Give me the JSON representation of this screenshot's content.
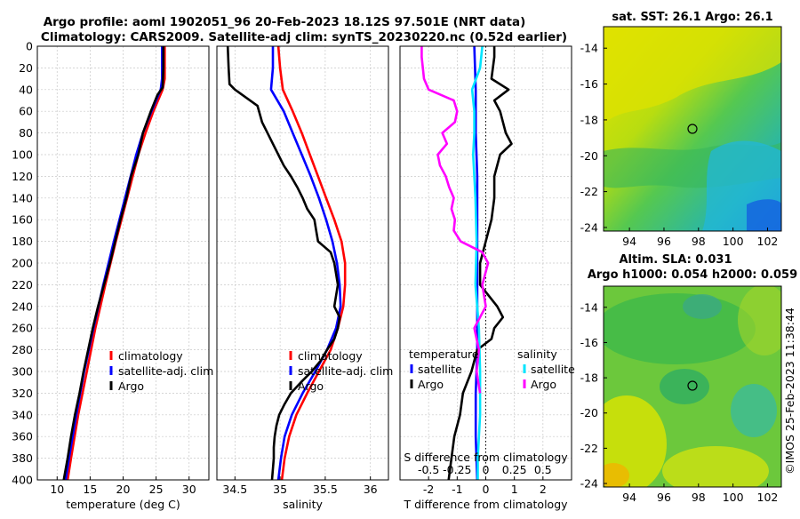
{
  "figure": {
    "title_line1": "Argo profile: aoml 1902051_96 20-Feb-2023 18.12S 97.501E (NRT data)",
    "title_line2": "Climatology: CARS2009. Satellite-adj clim: synTS_20230220.nc (0.52d earlier)",
    "stamp": "©IMOS 25-Feb-2023 11:38:44"
  },
  "colors": {
    "climatology": "#ff0000",
    "satellite": "#0000ff",
    "argo": "#000000",
    "argo_salinity_diff": "#ff00ff",
    "satellite_salinity_diff": "#00e5ff",
    "grid": "#c8c8c8"
  },
  "chart_data": [
    {
      "id": "temperature",
      "type": "line",
      "xlabel": "temperature (deg C)",
      "ylabel": "",
      "xlim": [
        7,
        33
      ],
      "ylim": [
        400,
        0
      ],
      "xticks": [
        10,
        15,
        20,
        25,
        30
      ],
      "xtick_labels": [
        "10",
        "15",
        "20",
        "25",
        "30"
      ],
      "yticks": [
        0,
        20,
        40,
        60,
        80,
        100,
        120,
        140,
        160,
        180,
        200,
        220,
        240,
        260,
        280,
        300,
        320,
        340,
        360,
        380,
        400
      ],
      "ytick_labels": [
        "0",
        "20",
        "40",
        "60",
        "80",
        "100",
        "120",
        "140",
        "160",
        "180",
        "200",
        "220",
        "240",
        "260",
        "280",
        "300",
        "320",
        "340",
        "360",
        "380",
        "400"
      ],
      "legend": [
        "climatology",
        "satellite-adj. clim",
        "Argo"
      ],
      "legend_position": "lower-right",
      "series": [
        {
          "name": "climatology",
          "color": "#ff0000",
          "depth": [
            0,
            30,
            40,
            60,
            80,
            100,
            140,
            180,
            220,
            260,
            300,
            340,
            380,
            400
          ],
          "values": [
            26.3,
            26.3,
            26.0,
            24.6,
            23.4,
            22.3,
            20.6,
            18.9,
            17.3,
            15.8,
            14.5,
            13.2,
            12.1,
            11.6
          ]
        },
        {
          "name": "satellite-adj. clim",
          "color": "#0000ff",
          "depth": [
            0,
            30,
            40,
            60,
            80,
            100,
            140,
            180,
            220,
            260,
            300,
            340,
            380,
            400
          ],
          "values": [
            25.9,
            25.9,
            25.7,
            24.3,
            23.0,
            22.0,
            20.3,
            18.6,
            17.0,
            15.5,
            14.1,
            12.9,
            11.8,
            11.3
          ]
        },
        {
          "name": "Argo",
          "color": "#000000",
          "depth": [
            0,
            20,
            38,
            45,
            60,
            80,
            100,
            120,
            140,
            160,
            180,
            200,
            220,
            240,
            260,
            280,
            300,
            320,
            340,
            360,
            380,
            400
          ],
          "values": [
            26.1,
            26.1,
            26.0,
            25.2,
            24.2,
            23.0,
            22.3,
            21.2,
            20.5,
            19.6,
            18.8,
            18.0,
            17.1,
            16.2,
            15.4,
            14.7,
            14.0,
            13.4,
            12.7,
            12.1,
            11.6,
            11.0
          ]
        }
      ]
    },
    {
      "id": "salinity",
      "type": "line",
      "xlabel": "salinity",
      "ylabel": "",
      "xlim": [
        34.3,
        36.2
      ],
      "ylim": [
        400,
        0
      ],
      "xticks": [
        34.5,
        35,
        35.5,
        36
      ],
      "xtick_labels": [
        "34.5",
        "35",
        "35.5",
        "36"
      ],
      "legend": [
        "climatology",
        "satellite-adj. clim",
        "Argo"
      ],
      "legend_position": "lower-right",
      "series": [
        {
          "name": "climatology",
          "color": "#ff0000",
          "depth": [
            0,
            20,
            40,
            60,
            80,
            100,
            120,
            140,
            160,
            180,
            200,
            220,
            240,
            260,
            280,
            300,
            320,
            340,
            360,
            380,
            400
          ],
          "values": [
            34.98,
            35.0,
            35.03,
            35.14,
            35.24,
            35.33,
            35.42,
            35.51,
            35.6,
            35.68,
            35.72,
            35.72,
            35.7,
            35.64,
            35.56,
            35.43,
            35.3,
            35.18,
            35.1,
            35.05,
            35.02
          ]
        },
        {
          "name": "satellite-adj. clim",
          "color": "#0000ff",
          "depth": [
            0,
            20,
            40,
            60,
            80,
            100,
            120,
            140,
            160,
            180,
            200,
            220,
            240,
            260,
            280,
            300,
            320,
            340,
            360,
            380,
            400
          ],
          "values": [
            34.92,
            34.92,
            34.9,
            35.04,
            35.14,
            35.24,
            35.34,
            35.43,
            35.51,
            35.58,
            35.63,
            35.66,
            35.67,
            35.62,
            35.52,
            35.39,
            35.25,
            35.13,
            35.05,
            35.01,
            34.98
          ]
        },
        {
          "name": "Argo",
          "color": "#000000",
          "depth": [
            0,
            20,
            35,
            40,
            55,
            70,
            80,
            90,
            100,
            110,
            120,
            130,
            140,
            150,
            160,
            170,
            180,
            190,
            200,
            210,
            220,
            230,
            240,
            250,
            260,
            270,
            280,
            290,
            300,
            310,
            320,
            330,
            340,
            350,
            360,
            370,
            380,
            390,
            400
          ],
          "values": [
            34.42,
            34.43,
            34.44,
            34.5,
            34.75,
            34.8,
            34.86,
            34.92,
            34.98,
            35.04,
            35.12,
            35.19,
            35.25,
            35.3,
            35.38,
            35.4,
            35.42,
            35.56,
            35.6,
            35.62,
            35.64,
            35.62,
            35.6,
            35.66,
            35.64,
            35.6,
            35.52,
            35.45,
            35.35,
            35.23,
            35.12,
            35.05,
            34.99,
            34.96,
            34.94,
            34.93,
            34.93,
            34.92,
            34.91
          ]
        }
      ]
    },
    {
      "id": "differences",
      "type": "line",
      "xlabel": "T difference from climatology",
      "ylabel": "",
      "xlim": [
        -3,
        3
      ],
      "ylim": [
        400,
        0
      ],
      "xticks": [
        -2,
        -1,
        0,
        1,
        2
      ],
      "xtick_labels": [
        "-2",
        "-1",
        "0",
        "1",
        "2"
      ],
      "top_axis_label": "S difference from climatology",
      "top_axis_values": [
        -0.5,
        -0.25,
        0,
        0.25,
        0.5
      ],
      "top_axis_tick_labels": [
        "-0.5",
        "-0.25",
        "0",
        "0.25",
        "0.5"
      ],
      "legend_temperature_title": "temperature",
      "legend_salinity_title": "salinity",
      "legend_temperature": [
        "satellite",
        "Argo"
      ],
      "legend_salinity": [
        "satellite",
        "Argo"
      ],
      "legend_position": "lower-right",
      "series": [
        {
          "name": "temperature satellite",
          "color": "#0000ff",
          "depth": [
            0,
            40,
            80,
            120,
            160,
            200,
            240,
            280,
            320,
            360,
            400
          ],
          "values": [
            -0.4,
            -0.35,
            -0.35,
            -0.3,
            -0.3,
            -0.3,
            -0.3,
            -0.3,
            -0.35,
            -0.35,
            -0.3
          ]
        },
        {
          "name": "temperature Argo",
          "color": "#000000",
          "depth": [
            0,
            10,
            30,
            40,
            50,
            60,
            80,
            90,
            100,
            120,
            140,
            160,
            180,
            200,
            220,
            240,
            250,
            260,
            270,
            280,
            300,
            320,
            340,
            360,
            380,
            400
          ],
          "values": [
            0.3,
            0.3,
            0.2,
            0.8,
            0.3,
            0.5,
            0.7,
            0.9,
            0.5,
            0.3,
            0.3,
            0.2,
            0.0,
            -0.2,
            -0.2,
            0.4,
            0.6,
            0.3,
            0.2,
            -0.3,
            -0.5,
            -0.8,
            -0.9,
            -1.1,
            -1.2,
            -1.3
          ]
        },
        {
          "name": "salinity satellite",
          "color": "#00e5ff",
          "depth": [
            0,
            20,
            40,
            60,
            80,
            100,
            140,
            180,
            220,
            260,
            300,
            340,
            380,
            400
          ],
          "values": [
            -0.03,
            -0.05,
            -0.12,
            -0.1,
            -0.1,
            -0.11,
            -0.09,
            -0.08,
            -0.09,
            -0.06,
            -0.05,
            -0.05,
            -0.07,
            -0.07
          ]
        },
        {
          "name": "salinity Argo",
          "color": "#ff00ff",
          "depth": [
            0,
            10,
            20,
            30,
            40,
            50,
            60,
            70,
            80,
            90,
            100,
            110,
            120,
            130,
            140,
            150,
            160,
            170,
            180,
            190,
            200,
            220,
            240,
            260,
            280,
            300,
            320
          ],
          "values": [
            -0.56,
            -0.56,
            -0.55,
            -0.54,
            -0.5,
            -0.28,
            -0.25,
            -0.27,
            -0.38,
            -0.34,
            -0.42,
            -0.4,
            -0.35,
            -0.32,
            -0.28,
            -0.3,
            -0.27,
            -0.28,
            -0.22,
            -0.03,
            0.02,
            -0.03,
            0.0,
            -0.1,
            -0.06,
            -0.08,
            -0.05
          ]
        }
      ]
    }
  ],
  "maps": [
    {
      "id": "sst",
      "title": "sat. SST: 26.1 Argo: 26.1",
      "xticks": [
        94,
        96,
        98,
        100,
        102
      ],
      "xtick_labels": [
        "94",
        "96",
        "98",
        "100",
        "102"
      ],
      "yticks": [
        -14,
        -16,
        -18,
        -20,
        -22,
        -24
      ],
      "ytick_labels": [
        "-14",
        "-16",
        "-18",
        "-20",
        "-22",
        "-24"
      ],
      "lon_range": [
        92.5,
        102.8
      ],
      "lat_range": [
        -24.2,
        -12.8
      ],
      "float_position": [
        97.501,
        -18.12
      ]
    },
    {
      "id": "sla",
      "title_line1": "Altim. SLA: 0.031",
      "title_line2": "Argo h1000: 0.054 h2000: 0.059",
      "xticks": [
        94,
        96,
        98,
        100,
        102
      ],
      "xtick_labels": [
        "94",
        "96",
        "98",
        "100",
        "102"
      ],
      "yticks": [
        -14,
        -16,
        -18,
        -20,
        -22,
        -24
      ],
      "ytick_labels": [
        "-14",
        "-16",
        "-18",
        "-20",
        "-22",
        "-24"
      ],
      "lon_range": [
        92.5,
        102.8
      ],
      "lat_range": [
        -24.2,
        -12.8
      ],
      "float_position": [
        97.501,
        -18.12
      ]
    }
  ]
}
